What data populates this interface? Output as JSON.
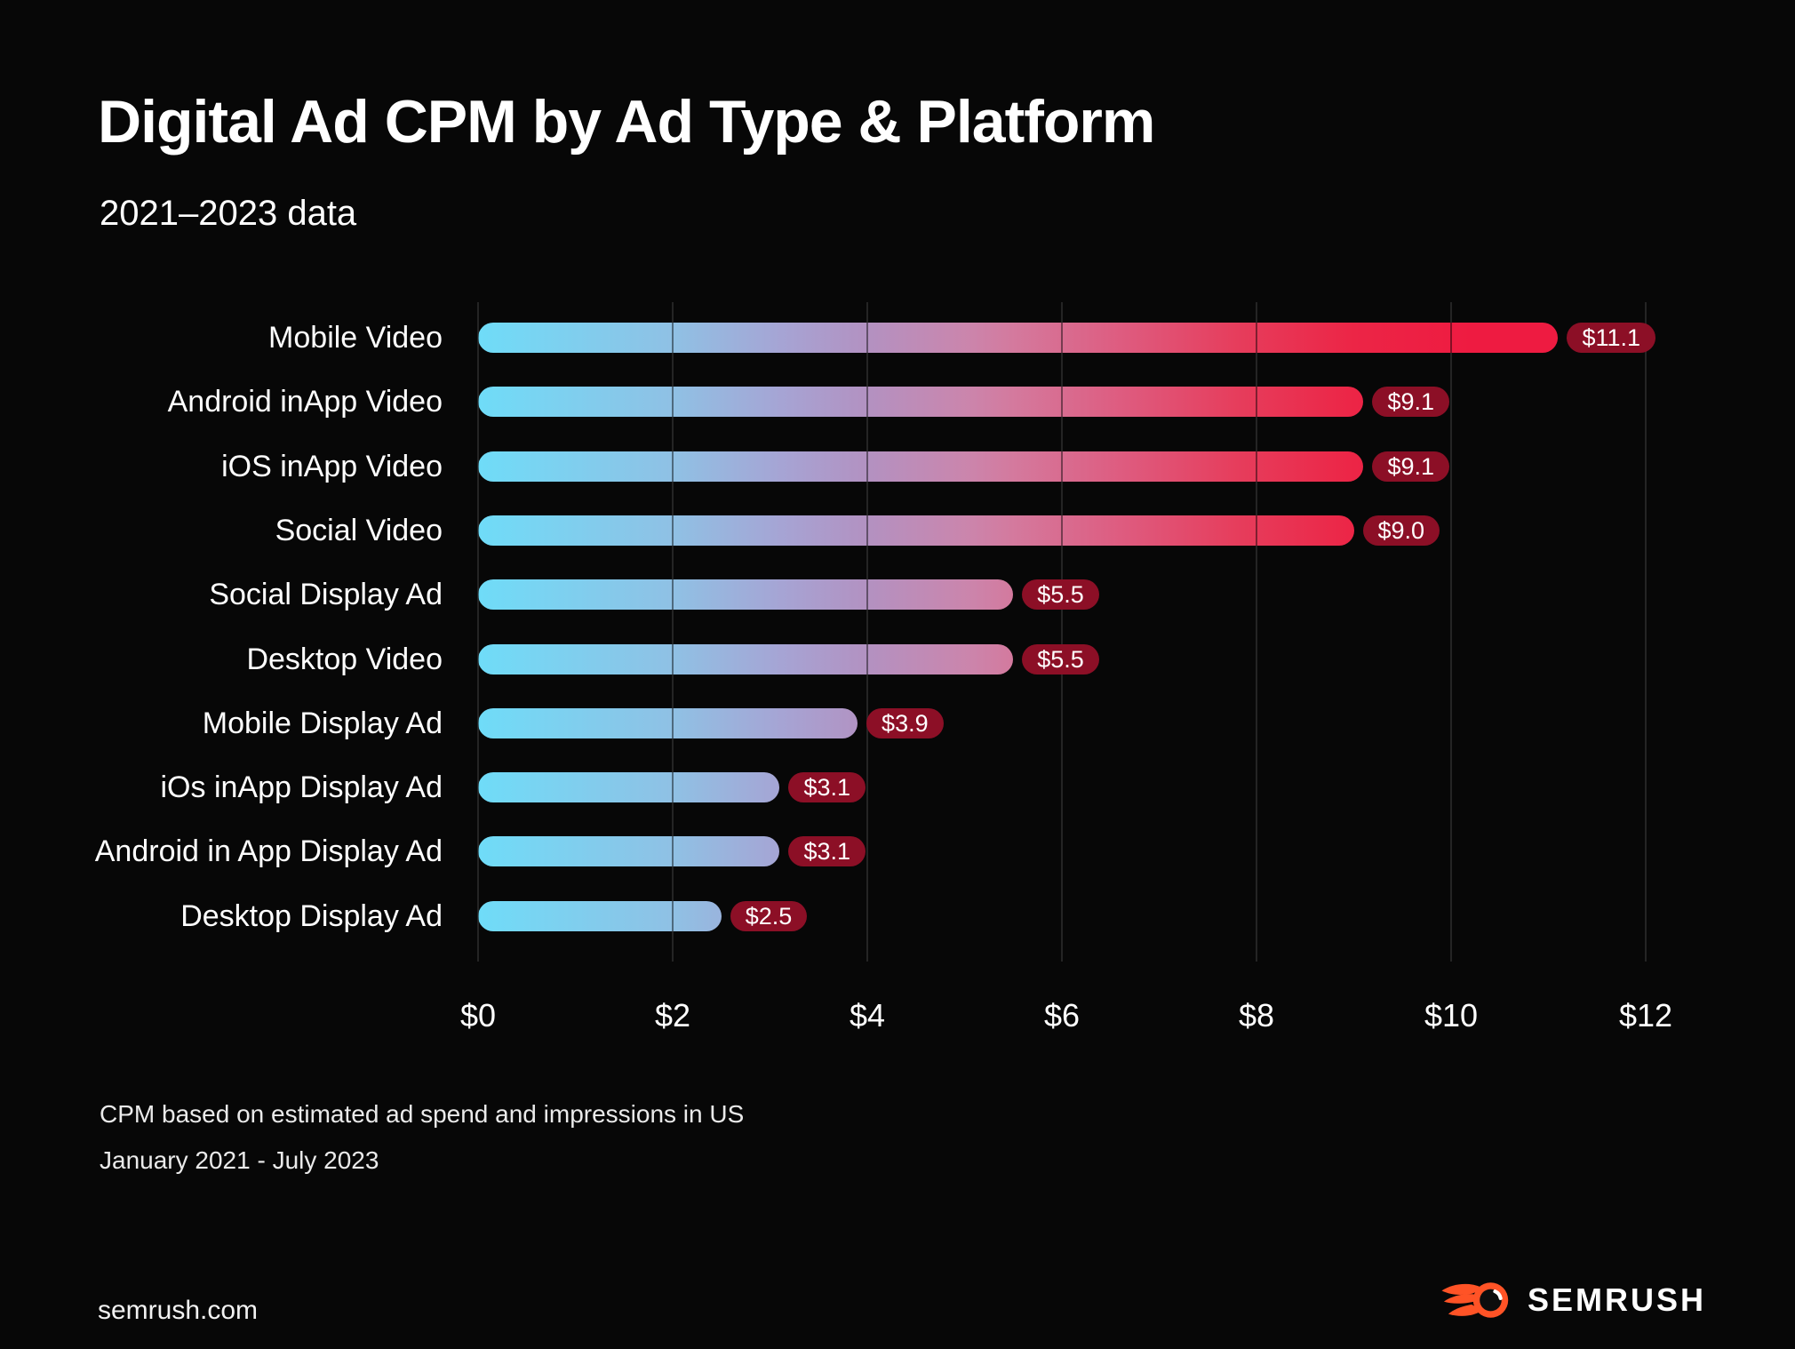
{
  "page": {
    "background_color": "#070707"
  },
  "header": {
    "title": "Digital Ad CPM by Ad Type & Platform",
    "subtitle": "2021–2023 data"
  },
  "chart_data": {
    "type": "bar",
    "orientation": "horizontal",
    "title": "Digital Ad CPM by Ad Type & Platform",
    "xlabel": "",
    "ylabel": "",
    "xlim": [
      0,
      12
    ],
    "grid": "vertical",
    "categories": [
      "Mobile Video",
      "Android inApp Video",
      "iOS inApp Video",
      "Social Video",
      "Social Display Ad",
      "Desktop Video",
      "Mobile Display Ad",
      "iOs inApp Display Ad",
      "Android in App Display Ad",
      "Desktop Display Ad"
    ],
    "values": [
      11.1,
      9.1,
      9.1,
      9.0,
      5.5,
      5.5,
      3.9,
      3.1,
      3.1,
      2.5
    ],
    "value_labels": [
      "$11.1",
      "$9.1",
      "$9.1",
      "$9.0",
      "$5.5",
      "$5.5",
      "$3.9",
      "$3.1",
      "$3.1",
      "$2.5"
    ],
    "x_ticks": [
      "$0",
      "$2",
      "$4",
      "$6",
      "$8",
      "$10",
      "$12"
    ],
    "colors": {
      "badge_bg": "#8C0F26",
      "badge_text": "#FFFFFF",
      "gridline": "#434343",
      "bar_gradient_stops": [
        [
          0.0,
          "#6FDCF8"
        ],
        [
          0.17,
          "#90C0E4"
        ],
        [
          0.26,
          "#A6A4D4"
        ],
        [
          0.33,
          "#B292C2"
        ],
        [
          0.42,
          "#CB85AC"
        ],
        [
          0.46,
          "#D4799D"
        ],
        [
          0.55,
          "#DE5C80"
        ],
        [
          0.65,
          "#E63D5C"
        ],
        [
          0.75,
          "#EC2546"
        ],
        [
          0.85,
          "#EE1B41"
        ],
        [
          1.0,
          "#EE1B41"
        ]
      ]
    }
  },
  "footnotes": {
    "line1": "CPM based on estimated ad spend and impressions in US",
    "line2": "January 2021 - July 2023"
  },
  "footer": {
    "site": "semrush.com",
    "logo_text": "SEMRUSH",
    "logo_icon": "semrush-flame-icon",
    "logo_orange": "#FF5326"
  }
}
